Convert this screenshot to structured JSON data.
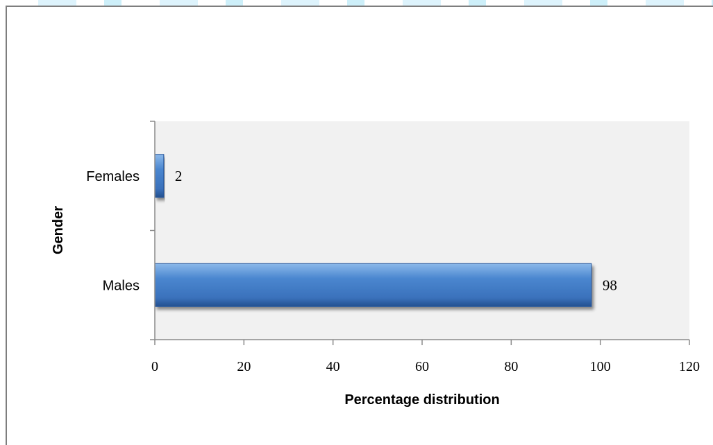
{
  "chart_data": {
    "type": "bar",
    "orientation": "horizontal",
    "categories": [
      "Females",
      "Males"
    ],
    "values": [
      2,
      98
    ],
    "data_labels": [
      "2",
      "98"
    ],
    "xlabel": "Percentage distribution",
    "ylabel": "Gender",
    "xlim": [
      0,
      120
    ],
    "x_ticks": [
      "0",
      "20",
      "40",
      "60",
      "80",
      "100",
      "120"
    ],
    "grid": false,
    "legend": "none",
    "colors": {
      "bar": "#3d78c4",
      "bar_dark": "#25559a",
      "bar_light": "#7eaee4",
      "plot_bg": "#f1f1f1",
      "axis": "#8a8a8a"
    }
  }
}
